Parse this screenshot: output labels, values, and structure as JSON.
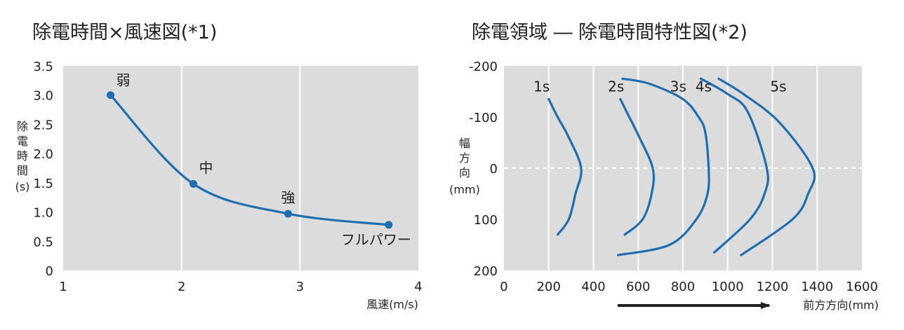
{
  "chart_data": [
    {
      "type": "line",
      "title": "除電時間×風速図(*1)",
      "xlabel": "風速(m/s)",
      "ylabel": "除電時間(s)",
      "ylabel_chars": [
        "除",
        "電",
        "時",
        "間",
        "(s)"
      ],
      "xlim": [
        1,
        4
      ],
      "ylim": [
        0,
        3.5
      ],
      "xticks": [
        "1",
        "2",
        "3",
        "4"
      ],
      "yticks": [
        "0",
        "0.5",
        "1.0",
        "1.5",
        "2.0",
        "2.5",
        "3.0",
        "3.5"
      ],
      "grid": true,
      "series": [
        {
          "x": [
            1.4,
            2.1,
            2.9,
            3.75
          ],
          "y": [
            3.0,
            1.48,
            0.97,
            0.78
          ]
        }
      ],
      "annotations": [
        {
          "text": "弱",
          "x": 1.4,
          "y": 3.0
        },
        {
          "text": "中",
          "x": 2.1,
          "y": 1.48
        },
        {
          "text": "強",
          "x": 2.9,
          "y": 0.97
        },
        {
          "text": "フルパワー",
          "x": 3.75,
          "y": 0.78
        }
      ],
      "line_color": "#1f6fb0",
      "background": "#dcdcdc"
    },
    {
      "type": "line",
      "title": "除電領域 ― 除電時間特性図(*2)",
      "xlabel": "前方方向(mm)",
      "ylabel": "幅方向(mm)",
      "ylabel_chars": [
        "幅",
        "方",
        "向",
        "(mm)"
      ],
      "xlim": [
        0,
        1600
      ],
      "ylim": [
        -200,
        200
      ],
      "xticks": [
        "0",
        "200",
        "400",
        "600",
        "800",
        "1000",
        "1200",
        "1400",
        "1600"
      ],
      "yticks": [
        "-200",
        "-100",
        "0",
        "100",
        "200"
      ],
      "grid": true,
      "zero_line": "dashed",
      "series": [
        {
          "name": "1s",
          "points": [
            [
              200,
              -135
            ],
            [
              240,
              -100
            ],
            [
              290,
              -60
            ],
            [
              345,
              0
            ],
            [
              320,
              50
            ],
            [
              290,
              100
            ],
            [
              240,
              130
            ]
          ]
        },
        {
          "name": "2s",
          "points": [
            [
              520,
              -135
            ],
            [
              560,
              -100
            ],
            [
              600,
              -65
            ],
            [
              665,
              0
            ],
            [
              660,
              50
            ],
            [
              620,
              100
            ],
            [
              540,
              130
            ]
          ]
        },
        {
          "name": "3s",
          "points": [
            [
              530,
              -175
            ],
            [
              650,
              -165
            ],
            [
              800,
              -135
            ],
            [
              870,
              -100
            ],
            [
              900,
              -70
            ],
            [
              915,
              0
            ],
            [
              910,
              50
            ],
            [
              860,
              100
            ],
            [
              740,
              150
            ],
            [
              510,
              170
            ]
          ]
        },
        {
          "name": "4s",
          "points": [
            [
              880,
              -175
            ],
            [
              1000,
              -145
            ],
            [
              1090,
              -110
            ],
            [
              1175,
              0
            ],
            [
              1165,
              50
            ],
            [
              1100,
              100
            ],
            [
              940,
              165
            ]
          ]
        },
        {
          "name": "5s",
          "points": [
            [
              960,
              -175
            ],
            [
              1070,
              -145
            ],
            [
              1230,
              -90
            ],
            [
              1380,
              0
            ],
            [
              1360,
              50
            ],
            [
              1290,
              100
            ],
            [
              1060,
              170
            ]
          ]
        }
      ],
      "line_color": "#1f6fb0",
      "background": "#dcdcdc"
    }
  ]
}
